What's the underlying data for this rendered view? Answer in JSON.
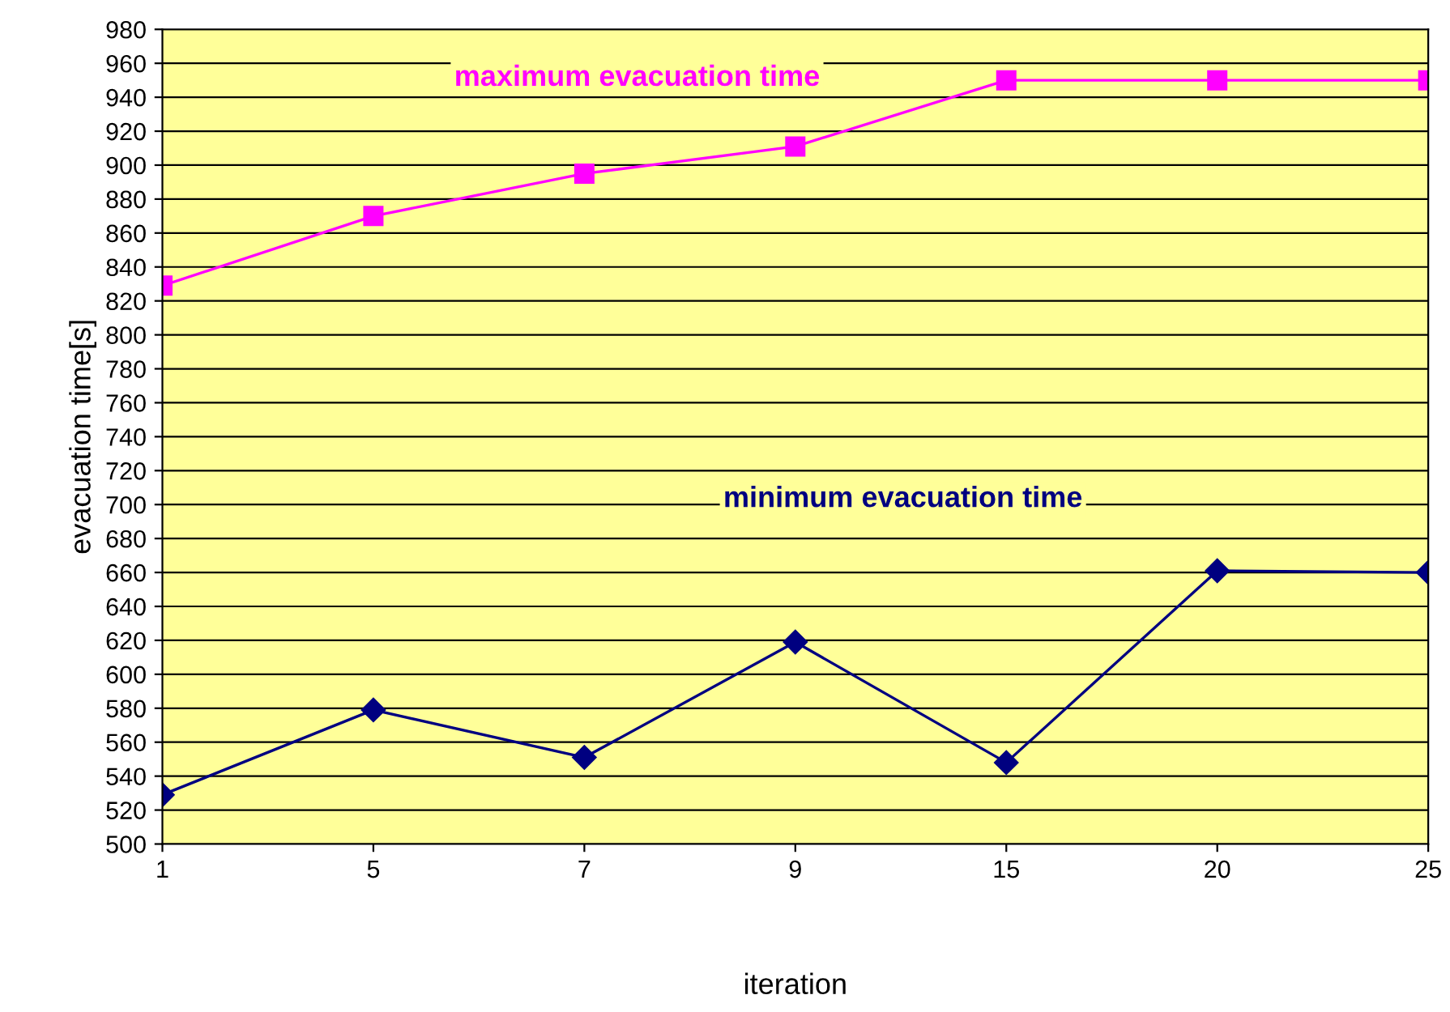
{
  "chart_data": {
    "type": "line",
    "xlabel": "iteration",
    "ylabel": "evacuation time[s]",
    "categories": [
      "1",
      "5",
      "7",
      "9",
      "15",
      "20",
      "25"
    ],
    "series": [
      {
        "name": "maximum evacuation time",
        "color": "#ff00ff",
        "marker": "square",
        "values": [
          829,
          870,
          895,
          911,
          950,
          950,
          950
        ]
      },
      {
        "name": "minimum evacuation time",
        "color": "#000080",
        "marker": "diamond",
        "values": [
          529,
          579,
          551,
          619,
          548,
          661,
          660
        ]
      }
    ],
    "ylim": [
      500,
      980
    ],
    "yticks": [
      500,
      520,
      540,
      560,
      580,
      600,
      620,
      640,
      660,
      680,
      700,
      720,
      740,
      760,
      780,
      800,
      820,
      840,
      860,
      880,
      900,
      920,
      940,
      960,
      980
    ],
    "grid": "y",
    "legend": false,
    "line_style": "solid"
  }
}
